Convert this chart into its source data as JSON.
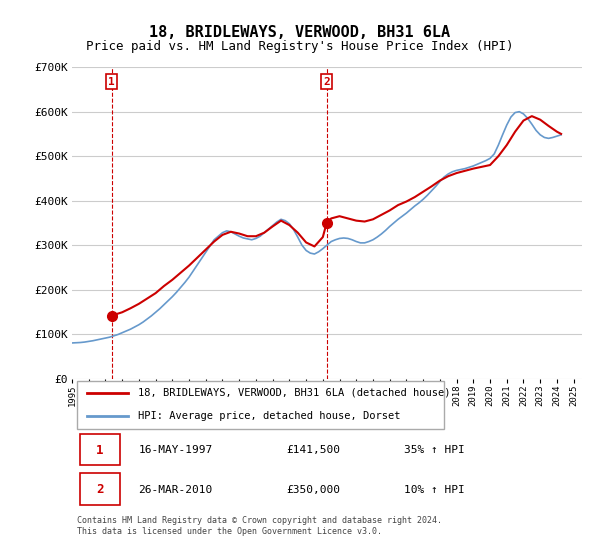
{
  "title": "18, BRIDLEWAYS, VERWOOD, BH31 6LA",
  "subtitle": "Price paid vs. HM Land Registry's House Price Index (HPI)",
  "ylabel": "",
  "ylim": [
    0,
    700000
  ],
  "yticks": [
    0,
    100000,
    200000,
    300000,
    400000,
    500000,
    600000,
    700000
  ],
  "ytick_labels": [
    "£0",
    "£100K",
    "£200K",
    "£300K",
    "£400K",
    "£500K",
    "£600K",
    "£700K"
  ],
  "xlim_start": 1995.0,
  "xlim_end": 2025.5,
  "sale1_x": 1997.37,
  "sale1_y": 141500,
  "sale1_label": "1",
  "sale2_x": 2010.23,
  "sale2_y": 350000,
  "sale2_label": "2",
  "sale_color": "#cc0000",
  "hpi_color": "#6699cc",
  "vline_color": "#cc0000",
  "grid_color": "#cccccc",
  "background_color": "#ffffff",
  "legend_line1": "18, BRIDLEWAYS, VERWOOD, BH31 6LA (detached house)",
  "legend_line2": "HPI: Average price, detached house, Dorset",
  "note1_box": "1",
  "note1_date": "16-MAY-1997",
  "note1_price": "£141,500",
  "note1_hpi": "35% ↑ HPI",
  "note2_box": "2",
  "note2_date": "26-MAR-2010",
  "note2_price": "£350,000",
  "note2_hpi": "10% ↑ HPI",
  "footer": "Contains HM Land Registry data © Crown copyright and database right 2024.\nThis data is licensed under the Open Government Licence v3.0.",
  "title_fontsize": 11,
  "subtitle_fontsize": 9,
  "tick_fontsize": 8,
  "hpi_series_x": [
    1995.0,
    1995.25,
    1995.5,
    1995.75,
    1996.0,
    1996.25,
    1996.5,
    1996.75,
    1997.0,
    1997.25,
    1997.5,
    1997.75,
    1998.0,
    1998.25,
    1998.5,
    1998.75,
    1999.0,
    1999.25,
    1999.5,
    1999.75,
    2000.0,
    2000.25,
    2000.5,
    2000.75,
    2001.0,
    2001.25,
    2001.5,
    2001.75,
    2002.0,
    2002.25,
    2002.5,
    2002.75,
    2003.0,
    2003.25,
    2003.5,
    2003.75,
    2004.0,
    2004.25,
    2004.5,
    2004.75,
    2005.0,
    2005.25,
    2005.5,
    2005.75,
    2006.0,
    2006.25,
    2006.5,
    2006.75,
    2007.0,
    2007.25,
    2007.5,
    2007.75,
    2008.0,
    2008.25,
    2008.5,
    2008.75,
    2009.0,
    2009.25,
    2009.5,
    2009.75,
    2010.0,
    2010.25,
    2010.5,
    2010.75,
    2011.0,
    2011.25,
    2011.5,
    2011.75,
    2012.0,
    2012.25,
    2012.5,
    2012.75,
    2013.0,
    2013.25,
    2013.5,
    2013.75,
    2014.0,
    2014.25,
    2014.5,
    2014.75,
    2015.0,
    2015.25,
    2015.5,
    2015.75,
    2016.0,
    2016.25,
    2016.5,
    2016.75,
    2017.0,
    2017.25,
    2017.5,
    2017.75,
    2018.0,
    2018.25,
    2018.5,
    2018.75,
    2019.0,
    2019.25,
    2019.5,
    2019.75,
    2020.0,
    2020.25,
    2020.5,
    2020.75,
    2021.0,
    2021.25,
    2021.5,
    2021.75,
    2022.0,
    2022.25,
    2022.5,
    2022.75,
    2023.0,
    2023.25,
    2023.5,
    2023.75,
    2024.0,
    2024.25
  ],
  "hpi_series_y": [
    80000,
    80500,
    81000,
    82000,
    83500,
    85000,
    87000,
    89000,
    91000,
    93000,
    96000,
    99000,
    103000,
    107000,
    111000,
    116000,
    121000,
    127000,
    134000,
    141000,
    149000,
    157000,
    166000,
    175000,
    184000,
    194000,
    205000,
    216000,
    228000,
    242000,
    256000,
    270000,
    284000,
    298000,
    312000,
    320000,
    328000,
    332000,
    330000,
    325000,
    320000,
    316000,
    314000,
    312000,
    315000,
    320000,
    328000,
    336000,
    344000,
    352000,
    358000,
    355000,
    348000,
    335000,
    318000,
    300000,
    288000,
    282000,
    280000,
    285000,
    292000,
    300000,
    308000,
    312000,
    315000,
    316000,
    315000,
    312000,
    308000,
    305000,
    305000,
    308000,
    312000,
    318000,
    325000,
    333000,
    342000,
    350000,
    358000,
    365000,
    372000,
    380000,
    388000,
    395000,
    403000,
    412000,
    422000,
    432000,
    443000,
    453000,
    460000,
    465000,
    468000,
    470000,
    472000,
    475000,
    478000,
    482000,
    486000,
    490000,
    495000,
    505000,
    525000,
    548000,
    570000,
    588000,
    598000,
    600000,
    595000,
    585000,
    572000,
    558000,
    548000,
    542000,
    540000,
    542000,
    545000,
    548000
  ],
  "price_series_x": [
    1997.37,
    1997.5,
    1998.0,
    1998.5,
    1999.0,
    1999.5,
    2000.0,
    2000.5,
    2001.0,
    2001.5,
    2002.0,
    2002.5,
    2003.0,
    2003.5,
    2004.0,
    2004.5,
    2005.0,
    2005.5,
    2006.0,
    2006.5,
    2007.0,
    2007.5,
    2008.0,
    2008.5,
    2009.0,
    2009.5,
    2010.0,
    2010.23,
    2010.5,
    2011.0,
    2011.5,
    2012.0,
    2012.5,
    2013.0,
    2013.5,
    2014.0,
    2014.5,
    2015.0,
    2015.5,
    2016.0,
    2016.5,
    2017.0,
    2017.5,
    2018.0,
    2018.5,
    2019.0,
    2019.5,
    2020.0,
    2020.5,
    2021.0,
    2021.5,
    2022.0,
    2022.5,
    2023.0,
    2023.5,
    2024.0,
    2024.25
  ],
  "price_series_y": [
    141500,
    143000,
    149000,
    158000,
    168000,
    180000,
    192000,
    208000,
    222000,
    238000,
    254000,
    272000,
    290000,
    308000,
    323000,
    330000,
    326000,
    320000,
    320000,
    328000,
    342000,
    355000,
    345000,
    328000,
    306000,
    297000,
    318000,
    350000,
    360000,
    365000,
    360000,
    355000,
    353000,
    358000,
    368000,
    378000,
    390000,
    398000,
    408000,
    420000,
    432000,
    445000,
    455000,
    462000,
    467000,
    472000,
    476000,
    480000,
    500000,
    525000,
    555000,
    580000,
    590000,
    582000,
    568000,
    555000,
    550000
  ]
}
